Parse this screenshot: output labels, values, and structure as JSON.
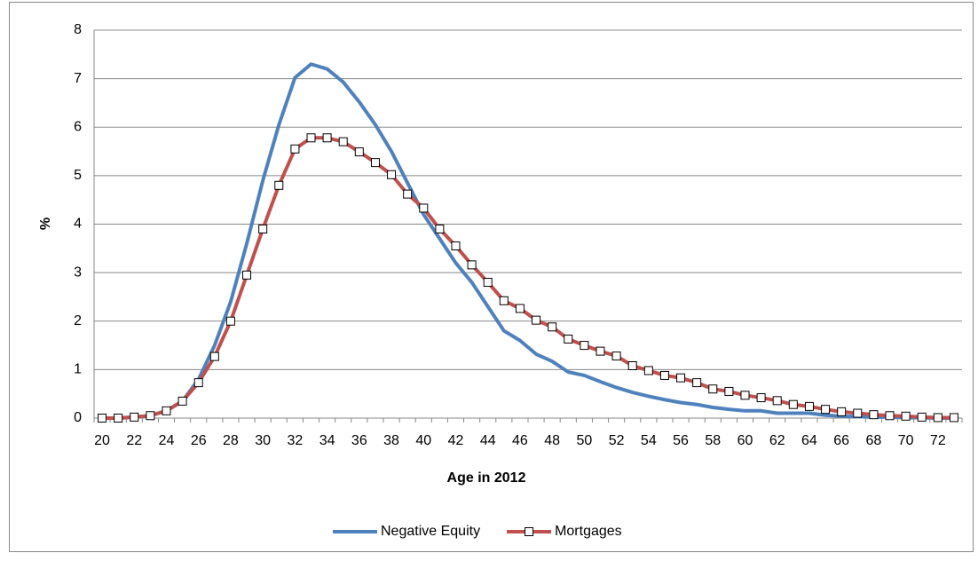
{
  "chart_data": {
    "type": "line",
    "x_label": "Age in 2012",
    "y_label": "%",
    "categories": [
      "20",
      null,
      "22",
      null,
      "24",
      null,
      "26",
      null,
      "28",
      null,
      "30",
      null,
      "32",
      null,
      "34",
      null,
      "36",
      null,
      "38",
      null,
      "40",
      null,
      "42",
      null,
      "44",
      null,
      "46",
      null,
      "48",
      null,
      "50",
      null,
      "52",
      null,
      "54",
      null,
      "56",
      null,
      "58",
      null,
      "60",
      null,
      "62",
      null,
      "64",
      null,
      "66",
      null,
      "68",
      null,
      "70",
      null,
      "72",
      null
    ],
    "series": [
      {
        "name": "Negative Equity",
        "color": "#4f81bd",
        "marker": false,
        "values": [
          0,
          0,
          0.02,
          0.05,
          0.15,
          0.35,
          0.8,
          1.5,
          2.4,
          3.6,
          4.9,
          6.05,
          7.02,
          7.3,
          7.2,
          6.93,
          6.52,
          6.05,
          5.5,
          4.85,
          4.2,
          3.7,
          3.2,
          2.8,
          2.3,
          1.8,
          1.6,
          1.32,
          1.17,
          0.95,
          0.88,
          0.75,
          0.63,
          0.53,
          0.45,
          0.38,
          0.32,
          0.28,
          0.22,
          0.18,
          0.15,
          0.15,
          0.1,
          0.1,
          0.1,
          0.06,
          0.04,
          0.03,
          0.02,
          0.02,
          0.01,
          0.01,
          0,
          0
        ]
      },
      {
        "name": "Mortgages",
        "color": "#c0504d",
        "marker": true,
        "values": [
          0,
          0,
          0.02,
          0.05,
          0.15,
          0.35,
          0.73,
          1.27,
          2.0,
          2.95,
          3.9,
          4.8,
          5.55,
          5.78,
          5.78,
          5.7,
          5.49,
          5.27,
          5.02,
          4.62,
          4.33,
          3.9,
          3.55,
          3.16,
          2.8,
          2.42,
          2.26,
          2.02,
          1.88,
          1.63,
          1.5,
          1.38,
          1.28,
          1.08,
          0.98,
          0.88,
          0.83,
          0.73,
          0.6,
          0.55,
          0.47,
          0.42,
          0.36,
          0.28,
          0.24,
          0.18,
          0.13,
          0.1,
          0.07,
          0.05,
          0.04,
          0.02,
          0.01,
          0.01
        ]
      }
    ],
    "ylim": [
      0,
      8
    ],
    "yticks": [
      0,
      1,
      2,
      3,
      4,
      5,
      6,
      7,
      8
    ],
    "grid": true,
    "legend": "bottom"
  }
}
